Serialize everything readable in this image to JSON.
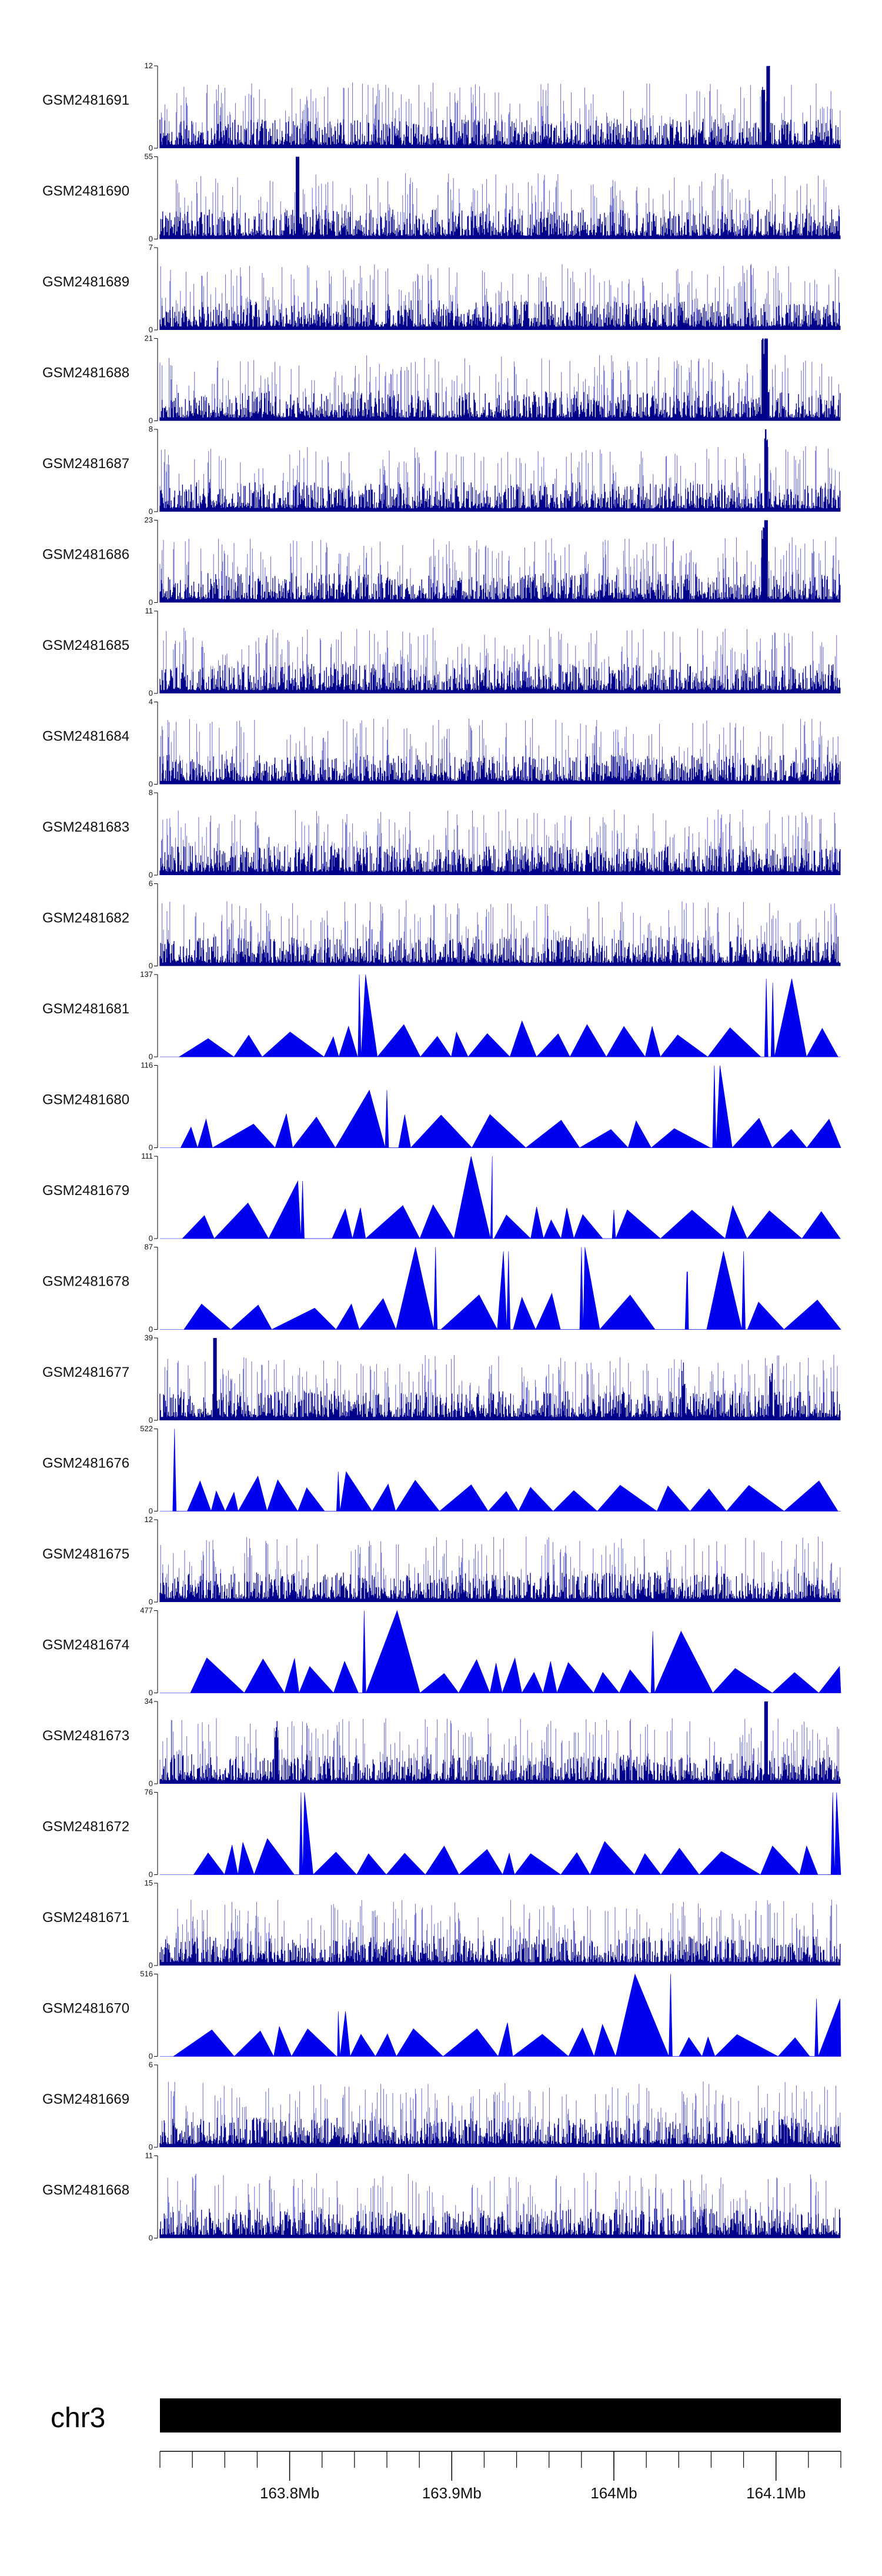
{
  "chart_data": {
    "type": "area",
    "title": "",
    "chromosome": "chr3",
    "genome_range_mb": [
      163.72,
      164.14
    ],
    "coordinate_ticks": [
      {
        "value": 163.8,
        "label": "163.8Mb"
      },
      {
        "value": 163.9,
        "label": "163.9Mb"
      },
      {
        "value": 164.0,
        "label": "164Mb"
      },
      {
        "value": 164.1,
        "label": "164.1Mb"
      }
    ],
    "colors": {
      "dense_track": "#00008b",
      "dense_track_light": "#6666cc",
      "sparse_track": "#0000ee",
      "ideogram": "#000000",
      "axis": "#000000"
    },
    "tracks": [
      {
        "name": "GSM2481691",
        "ymin": 0,
        "ymax": 12,
        "style": "dense",
        "peaks": [
          {
            "pos": 164.095,
            "height": 1.0
          },
          {
            "pos": 164.092,
            "height": 0.7
          }
        ]
      },
      {
        "name": "GSM2481690",
        "ymin": 0,
        "ymax": 55,
        "style": "dense",
        "peaks": [
          {
            "pos": 163.805,
            "height": 0.95
          }
        ]
      },
      {
        "name": "GSM2481689",
        "ymin": 0,
        "ymax": 7,
        "style": "dense",
        "peaks": []
      },
      {
        "name": "GSM2481688",
        "ymin": 0,
        "ymax": 21,
        "style": "dense",
        "peaks": [
          {
            "pos": 164.094,
            "height": 1.0
          },
          {
            "pos": 164.092,
            "height": 0.8
          }
        ]
      },
      {
        "name": "GSM2481687",
        "ymin": 0,
        "ymax": 8,
        "style": "dense",
        "peaks": [
          {
            "pos": 164.094,
            "height": 0.85
          }
        ]
      },
      {
        "name": "GSM2481686",
        "ymin": 0,
        "ymax": 23,
        "style": "dense",
        "peaks": [
          {
            "pos": 164.094,
            "height": 1.0
          },
          {
            "pos": 164.092,
            "height": 0.75
          }
        ]
      },
      {
        "name": "GSM2481685",
        "ymin": 0,
        "ymax": 11,
        "style": "dense",
        "peaks": []
      },
      {
        "name": "GSM2481684",
        "ymin": 0,
        "ymax": 4,
        "style": "dense",
        "peaks": []
      },
      {
        "name": "GSM2481683",
        "ymin": 0,
        "ymax": 8,
        "style": "dense",
        "peaks": []
      },
      {
        "name": "GSM2481682",
        "ymin": 0,
        "ymax": 6,
        "style": "dense",
        "peaks": []
      },
      {
        "name": "GSM2481681",
        "ymin": 0,
        "ymax": 137,
        "style": "sparse",
        "peaks": [
          {
            "pos": 163.843,
            "height": 1.0
          },
          {
            "pos": 164.094,
            "height": 0.95
          },
          {
            "pos": 164.098,
            "height": 0.9
          }
        ]
      },
      {
        "name": "GSM2481680",
        "ymin": 0,
        "ymax": 116,
        "style": "sparse",
        "peaks": [
          {
            "pos": 163.86,
            "height": 0.7
          },
          {
            "pos": 164.062,
            "height": 1.0
          }
        ]
      },
      {
        "name": "GSM2481679",
        "ymin": 0,
        "ymax": 111,
        "style": "sparse",
        "peaks": [
          {
            "pos": 163.808,
            "height": 0.7
          },
          {
            "pos": 163.925,
            "height": 1.0
          },
          {
            "pos": 164.0,
            "height": 0.35
          }
        ]
      },
      {
        "name": "GSM2481678",
        "ymin": 0,
        "ymax": 87,
        "style": "sparse",
        "peaks": [
          {
            "pos": 163.89,
            "height": 1.0
          },
          {
            "pos": 163.935,
            "height": 0.95
          },
          {
            "pos": 163.98,
            "height": 1.0
          },
          {
            "pos": 164.045,
            "height": 0.7
          },
          {
            "pos": 164.08,
            "height": 0.95
          }
        ]
      },
      {
        "name": "GSM2481677",
        "ymin": 0,
        "ymax": 39,
        "style": "dense",
        "peaks": [
          {
            "pos": 163.754,
            "height": 1.0
          },
          {
            "pos": 164.097,
            "height": 0.45
          },
          {
            "pos": 164.043,
            "height": 0.4
          }
        ]
      },
      {
        "name": "GSM2481676",
        "ymin": 0,
        "ymax": 522,
        "style": "sparse",
        "peaks": [
          {
            "pos": 163.729,
            "height": 1.0
          },
          {
            "pos": 163.83,
            "height": 0.48
          }
        ]
      },
      {
        "name": "GSM2481675",
        "ymin": 0,
        "ymax": 12,
        "style": "dense",
        "peaks": []
      },
      {
        "name": "GSM2481674",
        "ymin": 0,
        "ymax": 477,
        "style": "sparse",
        "peaks": [
          {
            "pos": 163.846,
            "height": 1.0
          },
          {
            "pos": 164.024,
            "height": 0.75
          }
        ]
      },
      {
        "name": "GSM2481673",
        "ymin": 0,
        "ymax": 34,
        "style": "dense",
        "peaks": [
          {
            "pos": 164.094,
            "height": 1.0
          },
          {
            "pos": 163.792,
            "height": 0.55
          }
        ]
      },
      {
        "name": "GSM2481672",
        "ymin": 0,
        "ymax": 76,
        "style": "sparse",
        "peaks": [
          {
            "pos": 164.135,
            "height": 1.0
          },
          {
            "pos": 163.807,
            "height": 1.0
          }
        ]
      },
      {
        "name": "GSM2481671",
        "ymin": 0,
        "ymax": 15,
        "style": "dense",
        "peaks": []
      },
      {
        "name": "GSM2481670",
        "ymin": 0,
        "ymax": 516,
        "style": "sparse",
        "peaks": [
          {
            "pos": 164.035,
            "height": 1.0
          },
          {
            "pos": 164.125,
            "height": 0.7
          },
          {
            "pos": 163.83,
            "height": 0.55
          }
        ]
      },
      {
        "name": "GSM2481669",
        "ymin": 0,
        "ymax": 6,
        "style": "dense",
        "peaks": []
      },
      {
        "name": "GSM2481668",
        "ymin": 0,
        "ymax": 11,
        "style": "dense",
        "peaks": []
      }
    ]
  }
}
